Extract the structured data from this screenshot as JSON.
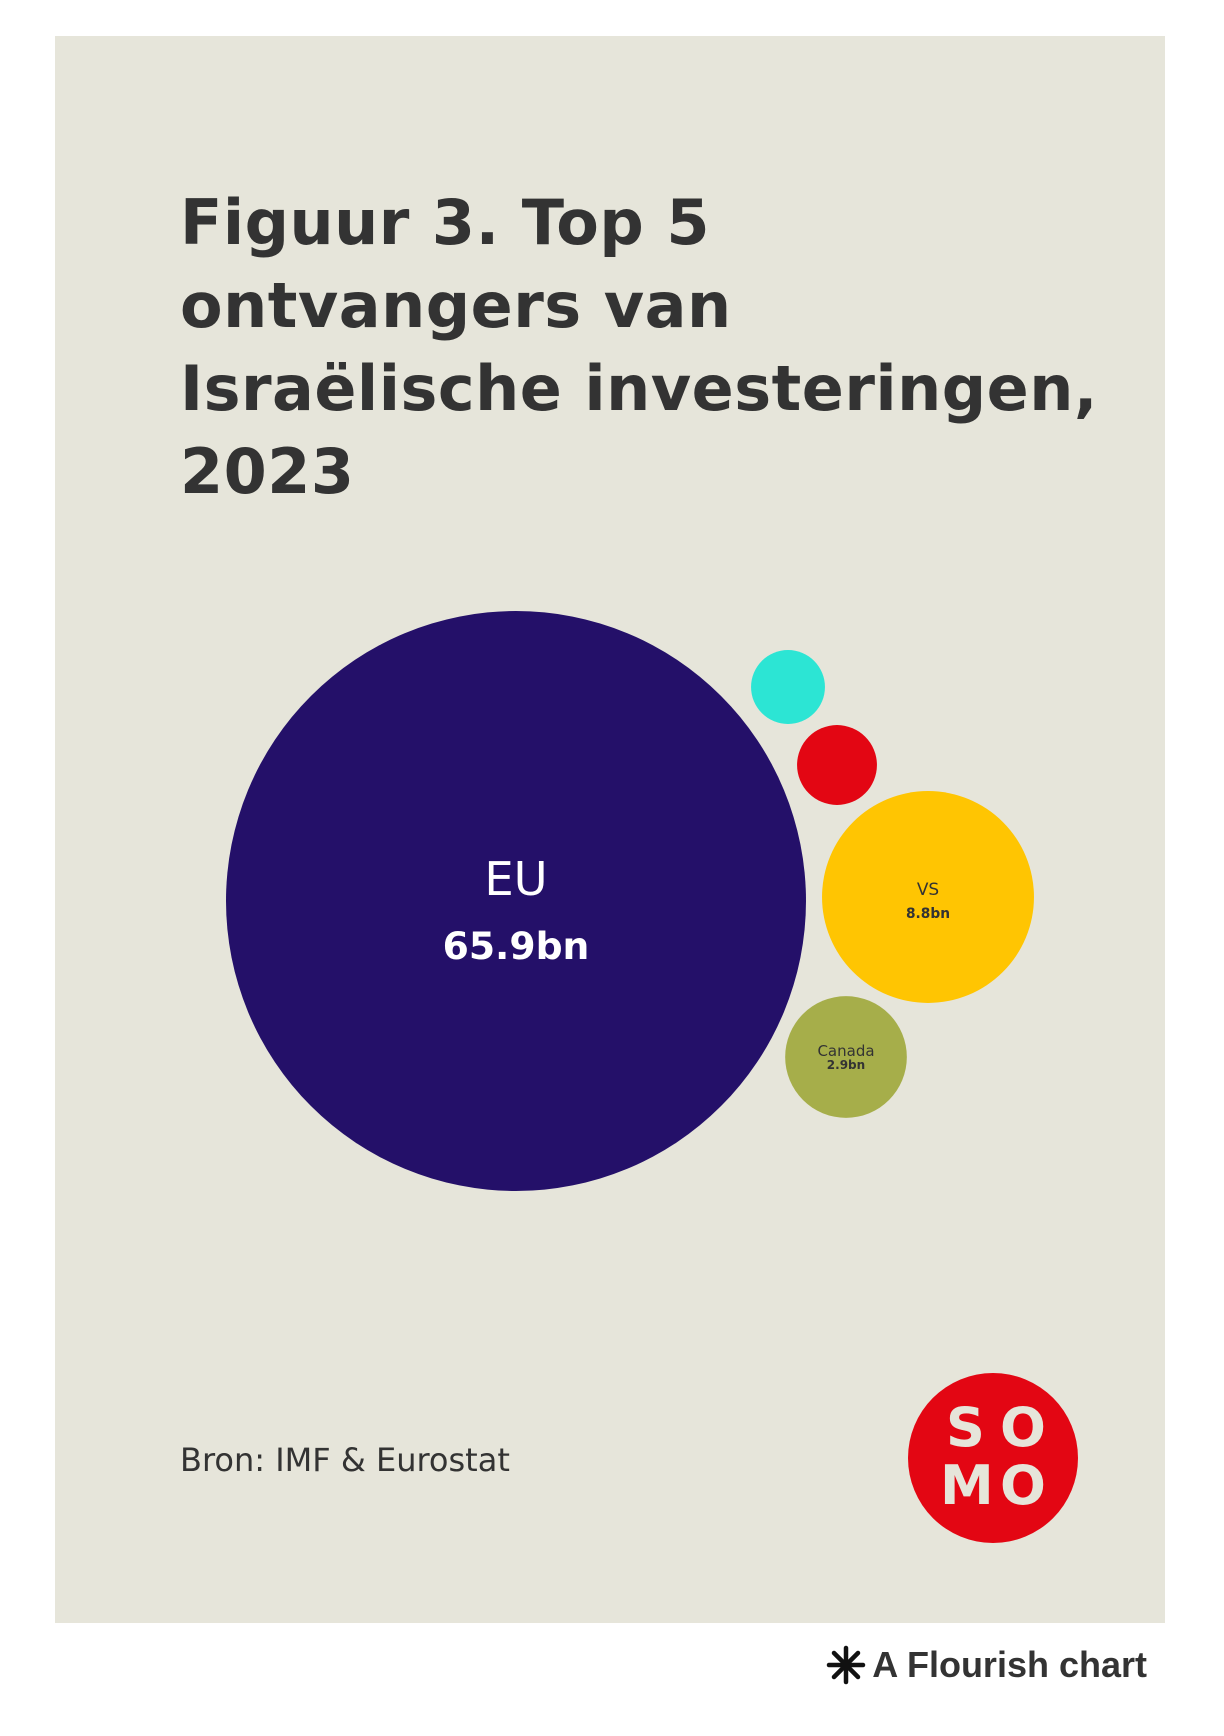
{
  "title": "Figuur 3. Top 5 ontvangers van Israëlische investeringen, 2023",
  "source": "Bron: IMF & Eurostat",
  "logo_text": "SOMO",
  "footer": "A Flourish chart",
  "chart_data": {
    "type": "bubble",
    "title": "Figuur 3. Top 5 ontvangers van Israëlische investeringen, 2023",
    "unit": "bn",
    "bubbles": [
      {
        "name": "EU",
        "value": 65.9,
        "value_label": "65.9bn",
        "color": "#241069",
        "label_color": "#ffffff",
        "labeled": true
      },
      {
        "name": "VS",
        "value": 8.8,
        "value_label": "8.8bn",
        "color": "#ffc502",
        "label_color": "#333333",
        "labeled": true
      },
      {
        "name": "Canada",
        "value": 2.9,
        "value_label": "2.9bn",
        "color": "#a6ae4a",
        "label_color": "#333333",
        "labeled": true
      },
      {
        "name": "",
        "value": 1.25,
        "value_label": "",
        "color": "#e30613",
        "label_color": "#333333",
        "labeled": false
      },
      {
        "name": "",
        "value": 1.07,
        "value_label": "",
        "color": "#2ce5d4",
        "label_color": "#333333",
        "labeled": false
      }
    ]
  }
}
